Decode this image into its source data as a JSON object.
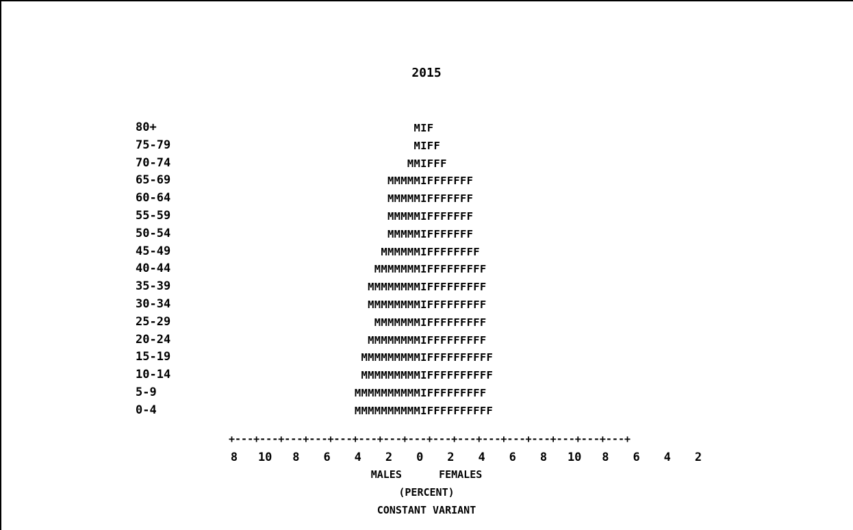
{
  "chart_data": {
    "type": "bar",
    "title": "2015",
    "categories": [
      "80+",
      "75-79",
      "70-74",
      "65-69",
      "60-64",
      "55-59",
      "50-54",
      "45-49",
      "40-44",
      "35-39",
      "30-34",
      "25-29",
      "20-24",
      "15-19",
      "10-14",
      "5-9",
      "0-4"
    ],
    "series": [
      {
        "name": "MALES",
        "values": [
          1,
          1,
          2,
          5,
          5,
          5,
          5,
          6,
          7,
          8,
          8,
          7,
          8,
          9,
          9,
          10,
          10
        ]
      },
      {
        "name": "FEMALES",
        "values": [
          1,
          2,
          3,
          7,
          7,
          7,
          7,
          8,
          9,
          9,
          9,
          9,
          9,
          10,
          10,
          9,
          10
        ]
      }
    ],
    "male_char": "M",
    "female_char": "F",
    "center_char": "I",
    "x_ticks": [
      "8",
      "10",
      "8",
      "6",
      "4",
      "2",
      "0",
      "2",
      "4",
      "6",
      "8",
      "10",
      "8",
      "6",
      "4",
      "2"
    ],
    "axis_line": "+---+---+---+---+---+---+---+---+---+---+---+---+---+---+---+---+",
    "xlabel_left": "MALES",
    "xlabel_right": "FEMALES",
    "xlabel_unit": "(PERCENT)",
    "footnote": "CONSTANT VARIANT"
  }
}
